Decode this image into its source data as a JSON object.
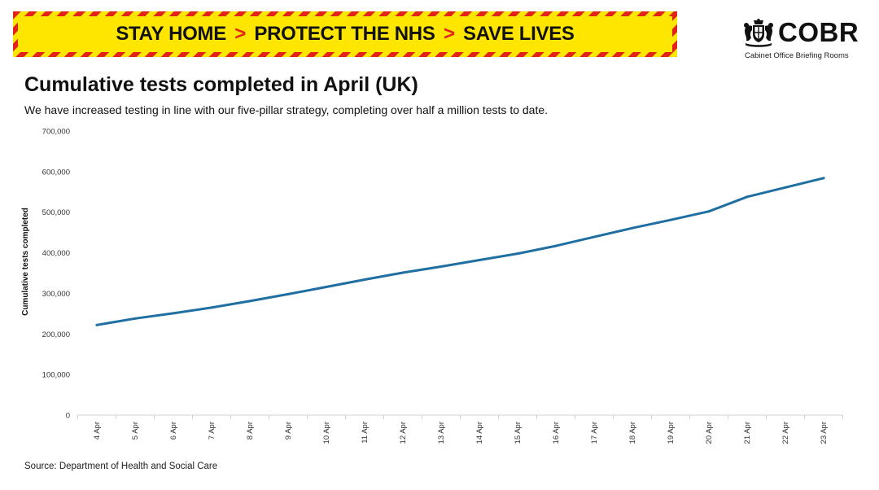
{
  "banner": {
    "part1": "STAY HOME",
    "part2": "PROTECT THE NHS",
    "part3": "SAVE LIVES",
    "separator": ">",
    "colors": {
      "background": "#ffe600",
      "stripe": "#e2231a"
    }
  },
  "logo": {
    "name": "COBR",
    "subtitle": "Cabinet Office Briefing Rooms",
    "icon": "royal-crest-icon"
  },
  "header": {
    "title": "Cumulative tests completed in April (UK)",
    "subtitle": "We have increased testing in line with our five-pillar strategy, completing over half a million tests to date."
  },
  "source": "Source: Department of Health and Social Care",
  "chart_data": {
    "type": "line",
    "title": "Cumulative tests completed in April (UK)",
    "xlabel": "",
    "ylabel": "Cumulative tests completed",
    "ylim": [
      0,
      700000
    ],
    "yticks": [
      "0",
      "100,000",
      "200,000",
      "300,000",
      "400,000",
      "500,000",
      "600,000",
      "700,000"
    ],
    "ytick_values": [
      0,
      100000,
      200000,
      300000,
      400000,
      500000,
      600000,
      700000
    ],
    "grid": false,
    "legend": "none",
    "line_color": "#1f6fa3",
    "categories": [
      "4 Apr",
      "5 Apr",
      "6 Apr",
      "7 Apr",
      "8 Apr",
      "9 Apr",
      "10 Apr",
      "11 Apr",
      "12 Apr",
      "13 Apr",
      "14 Apr",
      "15 Apr",
      "16 Apr",
      "17 Apr",
      "18 Apr",
      "19 Apr",
      "20 Apr",
      "21 Apr",
      "22 Apr",
      "23 Apr"
    ],
    "series": [
      {
        "values": [
          222000,
          238000,
          251000,
          265000,
          281000,
          298000,
          316000,
          334000,
          351000,
          366000,
          382000,
          398000,
          417000,
          439000,
          461000,
          481000,
          502000,
          538000,
          561000,
          584000
        ]
      }
    ]
  }
}
